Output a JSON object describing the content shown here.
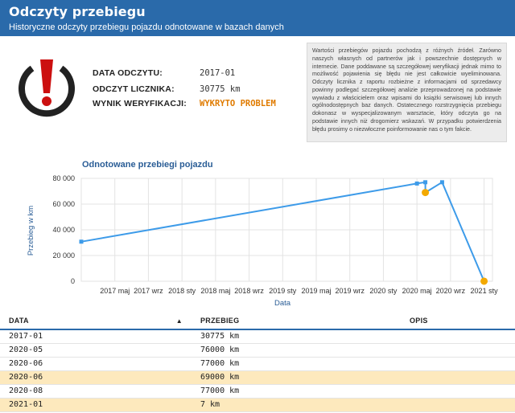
{
  "header": {
    "title": "Odczyty przebiegu",
    "subtitle": "Historyczne odczyty przebiegu pojazdu odnotowane w bazach danych"
  },
  "logo": {
    "icon": "warning-exclamation-icon",
    "color_dark": "#222222",
    "color_accent": "#cc1010"
  },
  "reading": {
    "date_label": "DATA ODCZYTU:",
    "date_value": "2017-01",
    "odometer_label": "ODCZYT LICZNIKA:",
    "odometer_value": "30775 km",
    "result_label": "WYNIK WERYFIKACJI:",
    "result_value": "WYKRYTO PROBLEM",
    "result_color": "#e07b00"
  },
  "note": "Wartości przebiegów pojazdu pochodzą z różnych źródeł. Zarówno naszych własnych od partnerów jak i powszechnie dostępnych w internecie. Dane poddawane są szczegółowej weryfikacji jednak mimo to możliwość pojawienia się błędu nie jest całkowicie wyeliminowana. Odczyty licznika z raportu rozbieżne z informacjami od sprzedawcy powinny podlegać szczegółowej analizie przeprowadzonej na podstawie wywiadu z właścicielem oraz wpisami do książki serwisowej lub innych ogólnodostępnych baz danych. Ostatecznego rozstrzygnięcia przebiegu dokonasz w wyspecjalizowanym warsztacie, który odczyta go na podstawie innych niż drogomierz wskazań. W przypadku potwierdzenia błędu prosimy o niezwłoczne poinformowanie nas o tym fakcie.",
  "chart_data": {
    "type": "line",
    "title": "Odnotowane przebiegi pojazdu",
    "xlabel": "Data",
    "ylabel": "Przebieg w km",
    "ylim": [
      0,
      80000
    ],
    "yticks": [
      0,
      20000,
      40000,
      60000,
      80000
    ],
    "ytick_labels": [
      "0",
      "20 000",
      "40 000",
      "60 000",
      "80 000"
    ],
    "xlim": [
      "2017-01",
      "2021-02"
    ],
    "xticks": [
      "2017-05",
      "2017-09",
      "2018-01",
      "2018-05",
      "2018-09",
      "2019-01",
      "2019-05",
      "2019-09",
      "2020-01",
      "2020-05",
      "2020-09",
      "2021-01"
    ],
    "xtick_labels": [
      "2017 maj",
      "2017 wrz",
      "2018 sty",
      "2018 maj",
      "2018 wrz",
      "2019 sty",
      "2019 maj",
      "2019 wrz",
      "2020 sty",
      "2020 maj",
      "2020 wrz",
      "2021 sty"
    ],
    "grid": true,
    "series": [
      {
        "color": "#3d9be9",
        "points": [
          {
            "x": "2017-01",
            "y": 30775
          },
          {
            "x": "2020-05",
            "y": 76000
          },
          {
            "x": "2020-06",
            "y": 77000
          },
          {
            "x": "2020-06",
            "y": 69000,
            "anomaly": true
          },
          {
            "x": "2020-08",
            "y": 77000
          },
          {
            "x": "2021-01",
            "y": 7,
            "anomaly": true
          }
        ]
      }
    ],
    "anomaly_color": "#f3a900"
  },
  "table": {
    "headers": [
      "DATA",
      "PRZEBIEG",
      "OPIS"
    ],
    "rows": [
      {
        "date": "2017-01",
        "mileage": "30775 km",
        "desc": "",
        "highlight": false
      },
      {
        "date": "2020-05",
        "mileage": "76000 km",
        "desc": "",
        "highlight": false
      },
      {
        "date": "2020-06",
        "mileage": "77000 km",
        "desc": "",
        "highlight": false
      },
      {
        "date": "2020-06",
        "mileage": "69000 km",
        "desc": "",
        "highlight": true
      },
      {
        "date": "2020-08",
        "mileage": "77000 km",
        "desc": "",
        "highlight": false
      },
      {
        "date": "2021-01",
        "mileage": "7 km",
        "desc": "",
        "highlight": true
      }
    ]
  }
}
